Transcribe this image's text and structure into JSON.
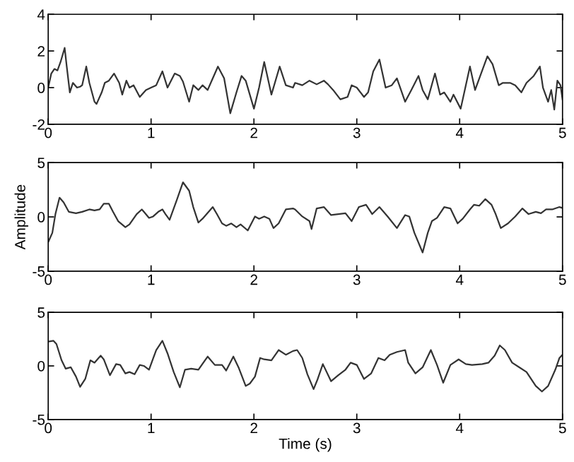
{
  "chart_data": [
    {
      "type": "line",
      "xlim": [
        0,
        5
      ],
      "xticks": [
        0,
        1,
        2,
        3,
        4,
        5
      ],
      "ylim": [
        -2,
        4
      ],
      "yticks": [
        -2,
        0,
        2,
        4
      ],
      "grid": false,
      "legend": false,
      "series": [
        {
          "color": "#333333",
          "x": [
            0.0,
            0.03,
            0.06,
            0.09,
            0.12,
            0.16,
            0.18,
            0.21,
            0.24,
            0.28,
            0.31,
            0.33,
            0.37,
            0.4,
            0.45,
            0.47,
            0.52,
            0.55,
            0.59,
            0.64,
            0.69,
            0.72,
            0.76,
            0.79,
            0.83,
            0.89,
            0.95,
            1.0,
            1.05,
            1.11,
            1.16,
            1.23,
            1.28,
            1.31,
            1.37,
            1.41,
            1.46,
            1.5,
            1.55,
            1.6,
            1.65,
            1.71,
            1.77,
            1.83,
            1.88,
            1.92,
            2.0,
            2.05,
            2.1,
            2.17,
            2.25,
            2.31,
            2.38,
            2.4,
            2.47,
            2.54,
            2.61,
            2.68,
            2.72,
            2.77,
            2.84,
            2.91,
            2.95,
            3.0,
            3.07,
            3.11,
            3.16,
            3.22,
            3.28,
            3.34,
            3.39,
            3.47,
            3.53,
            3.6,
            3.64,
            3.69,
            3.76,
            3.81,
            3.85,
            3.91,
            3.94,
            4.01,
            4.06,
            4.1,
            4.15,
            4.2,
            4.27,
            4.32,
            4.38,
            4.42,
            4.49,
            4.54,
            4.6,
            4.65,
            4.72,
            4.78,
            4.81,
            4.86,
            4.89,
            4.92,
            4.95,
            4.98,
            5.0
          ],
          "values": [
            0.0,
            0.77,
            1.02,
            0.94,
            1.4,
            2.17,
            1.15,
            -0.26,
            0.26,
            0.0,
            0.05,
            0.13,
            1.15,
            0.26,
            -0.77,
            -0.89,
            -0.26,
            0.26,
            0.38,
            0.77,
            0.26,
            -0.38,
            0.38,
            0.0,
            0.13,
            -0.51,
            -0.13,
            0.0,
            0.13,
            0.89,
            0.0,
            0.77,
            0.64,
            0.33,
            -0.77,
            0.13,
            -0.13,
            0.13,
            -0.13,
            0.51,
            1.15,
            0.51,
            -1.4,
            -0.26,
            0.64,
            0.38,
            -1.15,
            0.0,
            1.4,
            -0.38,
            1.15,
            0.13,
            0.0,
            0.26,
            0.13,
            0.38,
            0.18,
            0.38,
            0.18,
            -0.13,
            -0.64,
            -0.51,
            0.13,
            0.0,
            -0.51,
            -0.26,
            0.89,
            1.53,
            0.0,
            0.13,
            0.51,
            -0.77,
            -0.13,
            0.64,
            -0.13,
            -0.64,
            0.77,
            -0.38,
            -0.26,
            -0.77,
            -0.38,
            -1.15,
            0.13,
            1.15,
            -0.13,
            0.64,
            1.71,
            1.28,
            0.13,
            0.26,
            0.26,
            0.13,
            -0.26,
            0.26,
            0.64,
            1.15,
            0.0,
            -0.77,
            -0.13,
            -1.2,
            0.38,
            0.13,
            -0.64
          ]
        }
      ]
    },
    {
      "type": "line",
      "xlim": [
        0,
        5
      ],
      "xticks": [
        0,
        1,
        2,
        3,
        4,
        5
      ],
      "ylim": [
        -5,
        5
      ],
      "yticks": [
        -5,
        0,
        5
      ],
      "ylabel": "Amplitude",
      "grid": false,
      "legend": false,
      "series": [
        {
          "color": "#333333",
          "x": [
            0.0,
            0.04,
            0.07,
            0.11,
            0.15,
            0.2,
            0.27,
            0.33,
            0.4,
            0.45,
            0.5,
            0.54,
            0.59,
            0.63,
            0.68,
            0.75,
            0.79,
            0.86,
            0.91,
            0.93,
            0.98,
            1.02,
            1.07,
            1.11,
            1.14,
            1.18,
            1.25,
            1.31,
            1.37,
            1.41,
            1.46,
            1.5,
            1.6,
            1.64,
            1.69,
            1.73,
            1.78,
            1.83,
            1.87,
            1.94,
            2.01,
            2.05,
            2.1,
            2.15,
            2.19,
            2.24,
            2.31,
            2.38,
            2.4,
            2.47,
            2.54,
            2.56,
            2.61,
            2.68,
            2.75,
            2.82,
            2.89,
            2.95,
            3.02,
            3.09,
            3.15,
            3.22,
            3.3,
            3.39,
            3.47,
            3.51,
            3.56,
            3.64,
            3.69,
            3.73,
            3.78,
            3.85,
            3.91,
            3.98,
            4.03,
            4.1,
            4.14,
            4.19,
            4.25,
            4.31,
            4.35,
            4.4,
            4.47,
            4.54,
            4.61,
            4.67,
            4.74,
            4.79,
            4.84,
            4.9,
            4.97,
            5.0
          ],
          "values": [
            -2.33,
            -1.47,
            0.26,
            1.77,
            1.34,
            0.47,
            0.34,
            0.47,
            0.69,
            0.6,
            0.69,
            1.21,
            1.21,
            0.47,
            -0.39,
            -0.95,
            -0.69,
            0.26,
            0.69,
            0.47,
            -0.09,
            0.04,
            0.47,
            0.69,
            0.26,
            -0.26,
            1.55,
            3.19,
            2.41,
            0.91,
            -0.52,
            -0.17,
            0.91,
            0.26,
            -0.6,
            -0.82,
            -0.6,
            -0.95,
            -0.69,
            -1.25,
            0.04,
            -0.17,
            0.04,
            -0.17,
            -1.03,
            -0.6,
            0.69,
            0.78,
            0.69,
            0.04,
            -0.39,
            -1.12,
            0.78,
            0.91,
            0.17,
            0.26,
            0.34,
            -0.39,
            0.91,
            1.12,
            0.26,
            0.91,
            0.04,
            -1.03,
            0.17,
            0.04,
            -1.47,
            -3.28,
            -1.47,
            -0.39,
            -0.09,
            0.91,
            0.78,
            -0.6,
            -0.17,
            0.69,
            1.12,
            1.03,
            1.64,
            1.12,
            0.26,
            -1.03,
            -0.6,
            0.04,
            0.78,
            0.26,
            0.47,
            0.34,
            0.69,
            0.69,
            0.91,
            0.82
          ]
        }
      ]
    },
    {
      "type": "line",
      "xlim": [
        0,
        5
      ],
      "xticks": [
        0,
        1,
        2,
        3,
        4,
        5
      ],
      "ylim": [
        -5,
        5
      ],
      "yticks": [
        -5,
        0,
        5
      ],
      "xlabel": "Time (s)",
      "grid": false,
      "legend": false,
      "series": [
        {
          "color": "#333333",
          "x": [
            0.0,
            0.05,
            0.08,
            0.13,
            0.17,
            0.22,
            0.27,
            0.31,
            0.36,
            0.41,
            0.45,
            0.51,
            0.54,
            0.6,
            0.66,
            0.7,
            0.75,
            0.79,
            0.84,
            0.89,
            0.93,
            0.98,
            1.05,
            1.11,
            1.16,
            1.22,
            1.28,
            1.33,
            1.39,
            1.46,
            1.55,
            1.62,
            1.69,
            1.73,
            1.8,
            1.85,
            1.92,
            1.96,
            2.01,
            2.06,
            2.1,
            2.17,
            2.24,
            2.31,
            2.38,
            2.42,
            2.47,
            2.52,
            2.58,
            2.62,
            2.67,
            2.75,
            2.82,
            2.89,
            2.94,
            3.0,
            3.07,
            3.14,
            3.21,
            3.27,
            3.32,
            3.39,
            3.47,
            3.5,
            3.57,
            3.64,
            3.72,
            3.78,
            3.84,
            3.91,
            3.99,
            4.06,
            4.12,
            4.22,
            4.28,
            4.34,
            4.39,
            4.44,
            4.51,
            4.58,
            4.65,
            4.74,
            4.8,
            4.86,
            4.93,
            4.97,
            5.0
          ],
          "values": [
            2.26,
            2.35,
            2.04,
            0.52,
            -0.26,
            -0.13,
            -1.0,
            -1.96,
            -1.22,
            0.52,
            0.3,
            0.96,
            0.61,
            -0.87,
            0.17,
            0.09,
            -0.7,
            -0.57,
            -0.78,
            0.09,
            0.0,
            -0.35,
            1.48,
            2.35,
            1.17,
            -0.57,
            -2.0,
            -0.35,
            -0.26,
            -0.35,
            0.87,
            0.09,
            0.09,
            -0.43,
            0.87,
            -0.13,
            -1.87,
            -1.65,
            -1.0,
            0.74,
            0.61,
            0.52,
            1.48,
            1.04,
            1.39,
            1.48,
            0.74,
            -0.78,
            -2.17,
            -1.22,
            0.17,
            -1.43,
            -0.87,
            -0.35,
            0.3,
            0.09,
            -1.22,
            -0.7,
            0.74,
            0.52,
            1.04,
            1.3,
            1.48,
            0.3,
            -0.7,
            -0.13,
            1.48,
            0.09,
            -1.57,
            0.09,
            0.61,
            0.17,
            0.09,
            0.17,
            0.3,
            0.96,
            1.91,
            1.48,
            0.3,
            -0.13,
            -0.57,
            -1.87,
            -2.39,
            -1.87,
            -0.35,
            0.74,
            1.04
          ]
        }
      ]
    }
  ]
}
